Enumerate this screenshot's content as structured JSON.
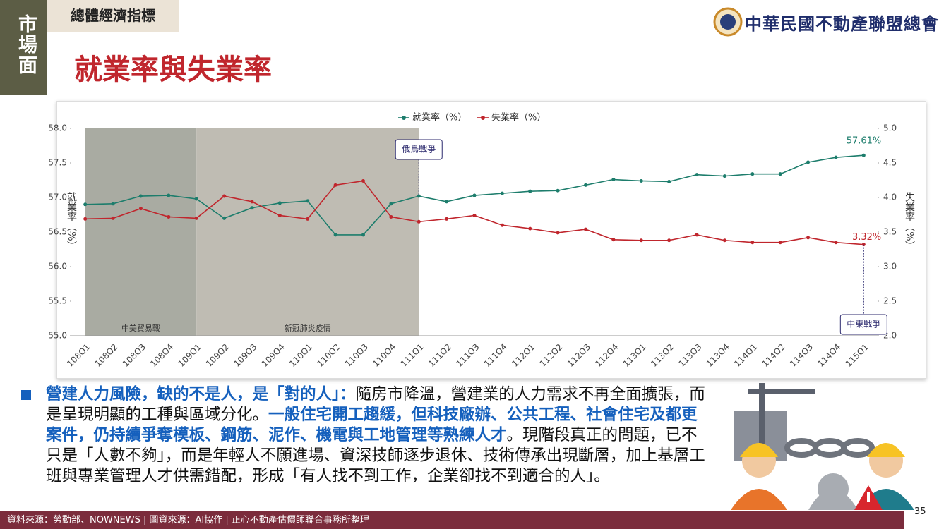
{
  "header": {
    "sidebar": "市場面",
    "section": "總體經濟指標",
    "title": "就業率與失業率",
    "logo": "中華民國不動產聯盟總會"
  },
  "chart_data": {
    "type": "line",
    "categories": [
      "108Q1",
      "108Q2",
      "108Q3",
      "108Q4",
      "109Q1",
      "109Q2",
      "109Q3",
      "109Q4",
      "110Q1",
      "110Q2",
      "110Q3",
      "110Q4",
      "111Q1",
      "111Q2",
      "111Q3",
      "111Q4",
      "112Q1",
      "112Q2",
      "112Q3",
      "112Q4",
      "113Q1",
      "113Q2",
      "113Q3",
      "113Q4",
      "114Q1",
      "114Q2",
      "114Q3",
      "114Q4",
      "115Q1"
    ],
    "series": [
      {
        "name": "就業率（%）",
        "color": "#1d7d6c",
        "axis": "y",
        "values": [
          56.9,
          56.91,
          57.02,
          57.03,
          56.98,
          56.7,
          56.85,
          56.92,
          56.95,
          56.46,
          56.46,
          56.91,
          57.02,
          56.94,
          57.03,
          57.06,
          57.09,
          57.1,
          57.18,
          57.26,
          57.24,
          57.23,
          57.33,
          57.31,
          57.34,
          57.34,
          57.51,
          57.58,
          57.61
        ],
        "value_labels": [
          null,
          null,
          null,
          null,
          null,
          null,
          null,
          null,
          null,
          null,
          null,
          null,
          null,
          null,
          null,
          null,
          null,
          null,
          null,
          null,
          null,
          null,
          null,
          null,
          null,
          null,
          null,
          null,
          "57.61%"
        ]
      },
      {
        "name": "失業率（%）",
        "color": "#c0262d",
        "axis": "y2",
        "values": [
          3.69,
          3.7,
          3.84,
          3.72,
          3.7,
          4.02,
          3.94,
          3.74,
          3.69,
          4.18,
          4.24,
          3.72,
          3.65,
          3.69,
          3.74,
          3.6,
          3.55,
          3.49,
          3.54,
          3.39,
          3.38,
          3.38,
          3.46,
          3.38,
          3.35,
          3.35,
          3.42,
          3.35,
          3.32
        ],
        "value_labels": [
          null,
          null,
          null,
          null,
          null,
          null,
          null,
          null,
          null,
          null,
          null,
          null,
          null,
          null,
          null,
          null,
          null,
          null,
          null,
          null,
          null,
          null,
          null,
          null,
          null,
          null,
          null,
          null,
          "3.32%"
        ]
      }
    ],
    "ylabel": "就業率（%）",
    "y2label": "失業率（%）",
    "ylim": [
      55,
      58
    ],
    "yticks": [
      {
        "value": 55,
        "label": "55.0"
      },
      55.5,
      {
        "value": 56,
        "label": "56.0"
      },
      56.5,
      {
        "value": 57,
        "label": "57.0"
      },
      57.5,
      {
        "value": 58,
        "label": "58.0"
      }
    ],
    "y2lim": [
      2,
      5
    ],
    "y2ticks": [
      {
        "value": 2,
        "label": "2.0"
      },
      2.5,
      {
        "value": 3,
        "label": "3.0"
      },
      3.5,
      {
        "value": 4,
        "label": "4.0"
      },
      4.5,
      {
        "value": 5,
        "label": "5.0"
      }
    ],
    "bands": [
      {
        "label": "中美貿易戰",
        "start": "108Q1",
        "end": "109Q1",
        "color": "#a9aba2"
      },
      {
        "label": "新冠肺炎疫情",
        "start": "109Q1",
        "end": "111Q1",
        "color": "#bfbcb3"
      }
    ],
    "annotations": [
      {
        "label": "俄烏戰爭",
        "at": "111Q1"
      },
      {
        "label": "中東戰爭",
        "at": "115Q1"
      }
    ],
    "legend": "top"
  },
  "body": {
    "segments": [
      {
        "text": "營建人力風險，缺的不是人，是「對的人」：",
        "emphasis": true
      },
      {
        "text": "隨房市降溫，營建業的人力需求不再全面擴張，而是呈現明顯的工種與區域分化。",
        "emphasis": false
      },
      {
        "text": "一般住宅開工趨緩，但科技廠辦、公共工程、社會住宅及都更案件，仍持續爭奪模板、鋼筋、泥作、機電與工地管理等熟練人才",
        "emphasis": true
      },
      {
        "text": "。現階段真正的問題，已不只是「人數不夠」，而是年輕人不願進場、資深技師逐步退休、技術傳承出現斷層，加上基層工班與專業管理人才供需錯配，形成「有人找不到工作，企業卻找不到適合的人」。",
        "emphasis": false
      }
    ]
  },
  "footer": {
    "source": "資料來源：勞動部、NOWNEWS | 圖資來源：AI協作 | 正心不動產估價師聯合事務所整理",
    "page": "35"
  }
}
